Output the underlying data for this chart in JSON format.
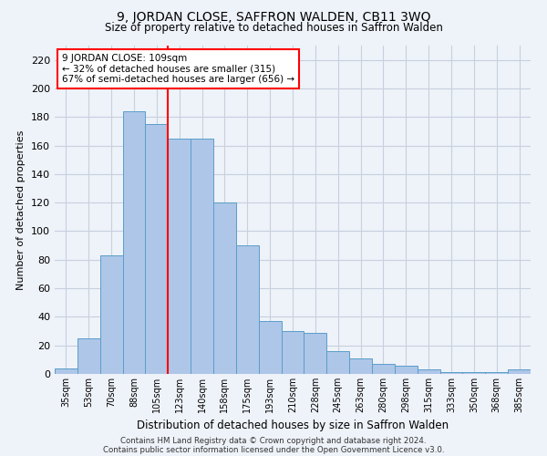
{
  "title": "9, JORDAN CLOSE, SAFFRON WALDEN, CB11 3WQ",
  "subtitle": "Size of property relative to detached houses in Saffron Walden",
  "xlabel": "Distribution of detached houses by size in Saffron Walden",
  "ylabel": "Number of detached properties",
  "categories": [
    "35sqm",
    "53sqm",
    "70sqm",
    "88sqm",
    "105sqm",
    "123sqm",
    "140sqm",
    "158sqm",
    "175sqm",
    "193sqm",
    "210sqm",
    "228sqm",
    "245sqm",
    "263sqm",
    "280sqm",
    "298sqm",
    "315sqm",
    "333sqm",
    "350sqm",
    "368sqm",
    "385sqm"
  ],
  "values": [
    4,
    25,
    83,
    184,
    175,
    165,
    165,
    120,
    90,
    37,
    30,
    29,
    16,
    11,
    7,
    6,
    3,
    1,
    1,
    1,
    3
  ],
  "bar_color": "#aec6e8",
  "bar_edge_color": "#5a9ec9",
  "vline_x": 4.5,
  "annotation_line1": "9 JORDAN CLOSE: 109sqm",
  "annotation_line2": "← 32% of detached houses are smaller (315)",
  "annotation_line3": "67% of semi-detached houses are larger (656) →",
  "ylim": [
    0,
    230
  ],
  "yticks": [
    0,
    20,
    40,
    60,
    80,
    100,
    120,
    140,
    160,
    180,
    200,
    220
  ],
  "footer1": "Contains HM Land Registry data © Crown copyright and database right 2024.",
  "footer2": "Contains public sector information licensed under the Open Government Licence v3.0.",
  "bg_color": "#eef2f9",
  "grid_color": "#c8d0de"
}
